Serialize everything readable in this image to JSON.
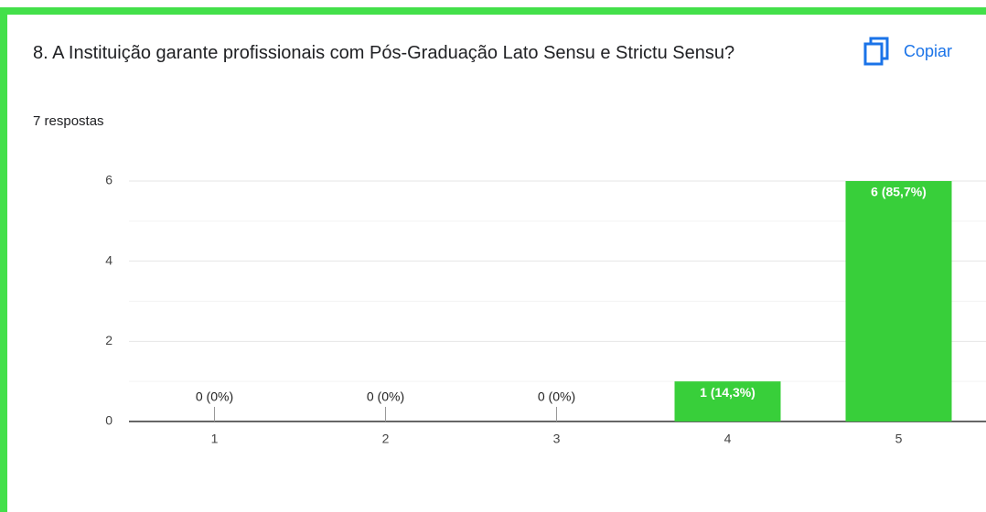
{
  "header": {
    "title": "8. A Instituição garante profissionais com Pós-Graduação Lato Sensu e Strictu Sensu?",
    "subtitle": "7 respostas",
    "button": "Copiar"
  },
  "chart_data": {
    "type": "bar",
    "categories": [
      "1",
      "2",
      "3",
      "4",
      "5"
    ],
    "values": [
      0,
      0,
      0,
      1,
      6
    ],
    "value_labels": [
      "0 (0%)",
      "0 (0%)",
      "0 (0%)",
      "1 (14,3%)",
      "6 (85,7%)"
    ],
    "color": "#38cf3a",
    "ylim": [
      0,
      6
    ],
    "yticks": [
      0,
      2,
      4,
      6
    ],
    "yminor": [
      1,
      3,
      5
    ],
    "grid": true
  }
}
